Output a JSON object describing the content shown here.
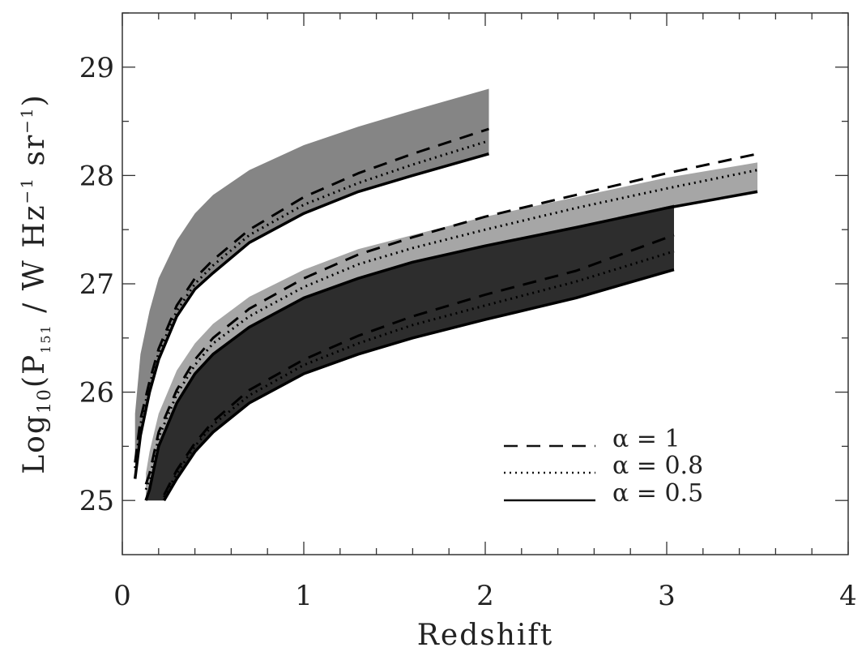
{
  "chart_data": {
    "type": "area",
    "xlabel": "Redshift",
    "ylabel": {
      "prefix": "Log",
      "sub1": "10",
      "mid": "(P",
      "sub2": "151",
      "unit_a": " / W Hz",
      "sup1": "−1",
      "unit_b": " sr",
      "sup2": "−1",
      "close": ")"
    },
    "xlim": [
      0,
      4
    ],
    "ylim": [
      24.5,
      29.5
    ],
    "x_ticks": [
      "0",
      "1",
      "2",
      "3",
      "4"
    ],
    "y_ticks": [
      "25",
      "26",
      "27",
      "28",
      "29"
    ],
    "legend": {
      "placement": "bottom-right",
      "entries": [
        {
          "label": "α  =  1",
          "style": "dashed"
        },
        {
          "label": "α  =  0.8",
          "style": "dotted"
        },
        {
          "label": "α  =  0.5",
          "style": "solid"
        }
      ]
    },
    "bands": [
      {
        "fill": "#858585",
        "x": [
          0.07,
          0.1,
          0.15,
          0.2,
          0.3,
          0.4,
          0.5,
          0.7,
          1.0,
          1.3,
          1.6,
          2.02
        ],
        "upper": [
          25.8,
          26.35,
          26.75,
          27.05,
          27.4,
          27.65,
          27.82,
          28.05,
          28.28,
          28.45,
          28.6,
          28.8
        ],
        "lower": [
          25.2,
          25.6,
          26.0,
          26.3,
          26.7,
          26.95,
          27.1,
          27.38,
          27.65,
          27.85,
          28.0,
          28.2
        ],
        "lines": [
          {
            "style": "solid",
            "y": [
              25.2,
              25.6,
              26.0,
              26.3,
              26.7,
              26.95,
              27.1,
              27.38,
              27.65,
              27.85,
              28.0,
              28.2
            ]
          },
          {
            "style": "dotted",
            "y": [
              25.3,
              25.7,
              26.07,
              26.36,
              26.75,
              27.0,
              27.17,
              27.45,
              27.73,
              27.93,
              28.1,
              28.32
            ]
          },
          {
            "style": "dashed",
            "y": [
              25.35,
              25.75,
              26.1,
              26.4,
              26.8,
              27.05,
              27.22,
              27.5,
              27.8,
              28.02,
              28.2,
              28.43
            ]
          }
        ]
      },
      {
        "fill": "#a6a6a6",
        "x": [
          0.13,
          0.15,
          0.2,
          0.3,
          0.4,
          0.5,
          0.7,
          1.0,
          1.3,
          1.6,
          2.0,
          2.5,
          3.0,
          3.5
        ],
        "upper": [
          25.25,
          25.45,
          25.8,
          26.2,
          26.45,
          26.63,
          26.88,
          27.13,
          27.32,
          27.45,
          27.62,
          27.8,
          27.98,
          28.12
        ],
        "lower": [
          25.0,
          25.1,
          25.5,
          25.9,
          26.17,
          26.35,
          26.6,
          26.87,
          27.05,
          27.2,
          27.35,
          27.52,
          27.7,
          27.85
        ],
        "lines": [
          {
            "style": "solid",
            "y": [
              25.0,
              25.1,
              25.5,
              25.9,
              26.17,
              26.35,
              26.6,
              26.87,
              27.05,
              27.2,
              27.35,
              27.52,
              27.7,
              27.85
            ]
          },
          {
            "style": "dotted",
            "y": [
              25.1,
              25.2,
              25.58,
              25.98,
              26.25,
              26.45,
              26.7,
              26.97,
              27.18,
              27.33,
              27.5,
              27.7,
              27.88,
              28.05
            ]
          },
          {
            "style": "dashed",
            "y": [
              25.15,
              25.25,
              25.63,
              26.02,
              26.3,
              26.5,
              26.77,
              27.05,
              27.27,
              27.43,
              27.62,
              27.82,
              28.02,
              28.2
            ]
          }
        ]
      },
      {
        "fill": "#2d2d2d",
        "x": [
          0.13,
          0.2,
          0.23,
          0.3,
          0.4,
          0.5,
          0.7,
          1.0,
          1.3,
          1.6,
          2.0,
          2.5,
          3.04
        ],
        "upper": [
          25.0,
          25.5,
          25.63,
          25.9,
          26.17,
          26.35,
          26.6,
          26.87,
          27.05,
          27.2,
          27.35,
          27.52,
          27.73
        ],
        "lower": [
          25.0,
          25.0,
          25.0,
          25.2,
          25.45,
          25.63,
          25.9,
          26.17,
          26.35,
          26.5,
          26.67,
          26.87,
          27.13
        ],
        "lines": [
          {
            "style": "solid",
            "y": [
              null,
              null,
              25.0,
              25.2,
              25.45,
              25.63,
              25.9,
              26.17,
              26.35,
              26.5,
              26.67,
              26.87,
              27.13
            ]
          },
          {
            "style": "dotted",
            "y": [
              null,
              null,
              25.03,
              25.25,
              25.5,
              25.7,
              25.97,
              26.25,
              26.45,
              26.62,
              26.8,
              27.02,
              27.3
            ]
          },
          {
            "style": "dashed",
            "y": [
              null,
              null,
              25.05,
              25.28,
              25.53,
              25.73,
              26.02,
              26.3,
              26.52,
              26.7,
              26.9,
              27.12,
              27.45
            ]
          }
        ]
      }
    ]
  }
}
